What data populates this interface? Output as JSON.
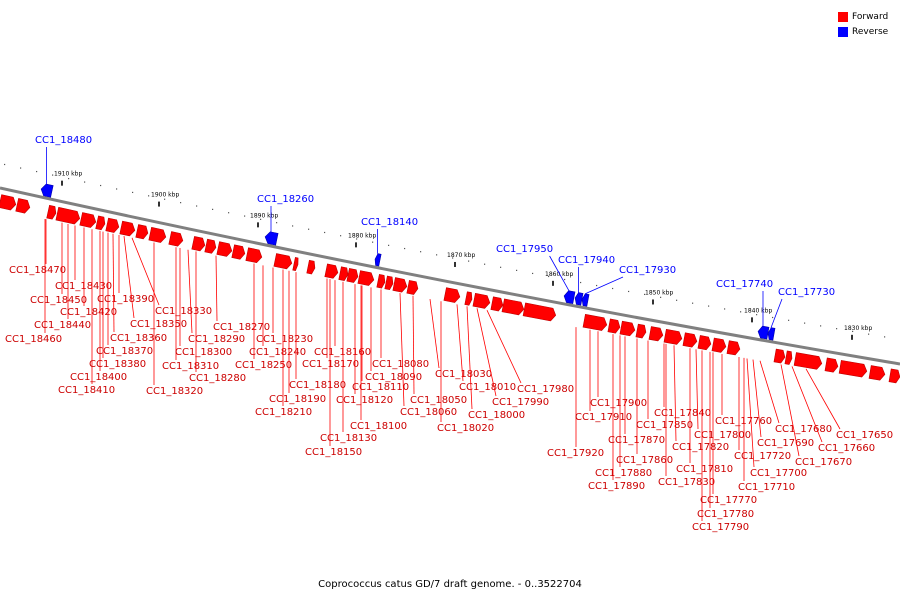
{
  "caption": "Coprococcus catus GD/7 draft genome. - 0..3522704",
  "legend": [
    {
      "label": "Forward",
      "color": "#ff0000"
    },
    {
      "label": "Reverse",
      "color": "#0000ff"
    }
  ],
  "colors": {
    "forward": "#ff0000",
    "reverse": "#0000ff",
    "backbone": "#808080"
  },
  "ticks": [
    "1910 kbp",
    "1900 kbp",
    "1890 kbp",
    "1880 kbp",
    "1870 kbp",
    "1860 kbp",
    "1850 kbp",
    "1840 kbp",
    "1830 kbp"
  ],
  "reverse_genes": [
    "CC1_18480",
    "CC1_18260",
    "CC1_18140",
    "CC1_17950",
    "CC1_17940",
    "CC1_17930",
    "CC1_17740",
    "CC1_17730"
  ],
  "forward_genes": [
    "CC1_18470",
    "CC1_18460",
    "CC1_18450",
    "CC1_18440",
    "CC1_18430",
    "CC1_18420",
    "CC1_18410",
    "CC1_18400",
    "CC1_18390",
    "CC1_18380",
    "CC1_18370",
    "CC1_18360",
    "CC1_18350",
    "CC1_18330",
    "CC1_18320",
    "CC1_18310",
    "CC1_18300",
    "CC1_18290",
    "CC1_18280",
    "CC1_18270",
    "CC1_18250",
    "CC1_18240",
    "CC1_18230",
    "CC1_18210",
    "CC1_18190",
    "CC1_18180",
    "CC1_18170",
    "CC1_18160",
    "CC1_18150",
    "CC1_18130",
    "CC1_18120",
    "CC1_18110",
    "CC1_18100",
    "CC1_18090",
    "CC1_18080",
    "CC1_18060",
    "CC1_18050",
    "CC1_18030",
    "CC1_18020",
    "CC1_18010",
    "CC1_18000",
    "CC1_17990",
    "CC1_17980",
    "CC1_17920",
    "CC1_17910",
    "CC1_17900",
    "CC1_17890",
    "CC1_17880",
    "CC1_17870",
    "CC1_17860",
    "CC1_17850",
    "CC1_17840",
    "CC1_17830",
    "CC1_17820",
    "CC1_17810",
    "CC1_17800",
    "CC1_17790",
    "CC1_17780",
    "CC1_17770",
    "CC1_17760",
    "CC1_17720",
    "CC1_17710",
    "CC1_17700",
    "CC1_17690",
    "CC1_17680",
    "CC1_17670",
    "CC1_17660",
    "CC1_17650"
  ]
}
